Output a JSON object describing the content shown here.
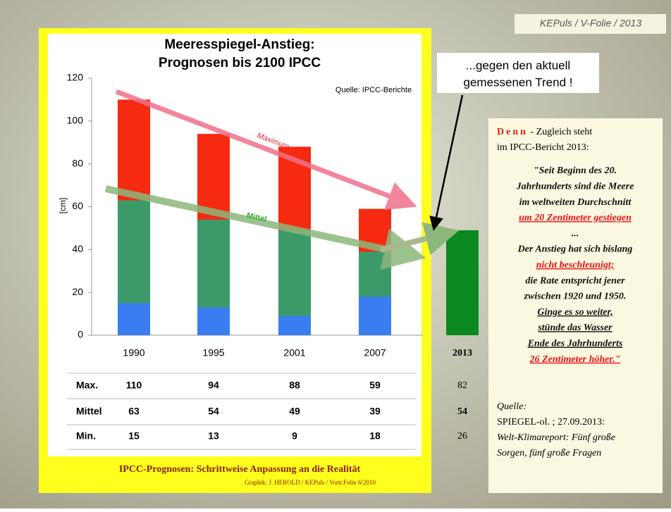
{
  "header": "KEPuls / V-Folie / 2013",
  "callout": [
    "...gegen den aktuell",
    "gemessenen Trend !"
  ],
  "chart_data": {
    "type": "bar",
    "title": [
      "Meeresspiegel-Anstieg:",
      "Prognosen bis 2100 IPCC"
    ],
    "source": "Quelle: IPCC-Berichte",
    "y_label": "[cm]",
    "annotations": [
      "Maximum",
      "Mittel"
    ],
    "categories": [
      "1990",
      "1995",
      "2001",
      "2007"
    ],
    "series": [
      {
        "name": "Max.",
        "color": "#f52a10",
        "values": [
          110,
          94,
          88,
          59
        ]
      },
      {
        "name": "Mittel",
        "color": "#3c9a6a",
        "values": [
          63,
          54,
          49,
          39
        ]
      },
      {
        "name": "Min.",
        "color": "#3a7df0",
        "values": [
          15,
          13,
          9,
          18
        ]
      }
    ],
    "column_2013": {
      "label": "2013",
      "value": 49,
      "color": "#0a8a1e",
      "values": [
        82,
        54,
        26
      ]
    },
    "ylim": [
      0,
      120
    ],
    "yticks": [
      0,
      20,
      40,
      60,
      80,
      100,
      120
    ]
  },
  "footer": {
    "title": "IPCC-Prognosen: Schrittweise Anpassung an die Realität",
    "credit": "Graphik: J. HEROLD / KEPuls / Vortr.Folie 6/2010"
  },
  "box": {
    "intro_word": "Denn",
    "intro_rest": " - Zugleich steht",
    "intro_line2": "im IPCC-Bericht 2013:",
    "quote": [
      "\"Seit Beginn des 20.",
      "Jahrhunderts sind die Meere",
      "im weltweiten Durchschnitt",
      "um 20 Zentimeter gestiegen",
      "...",
      "Der Anstieg hat sich bislang",
      "nicht beschleunigt;",
      "die Rate entspricht jener",
      "zwischen 1920 und 1950.",
      "Ginge es so weiter,",
      "stünde das Wasser",
      "Ende des Jahrhunderts",
      "26 Zentimeter höher.\""
    ],
    "source": [
      "Quelle:",
      "SPIEGEL-ol. ; 27.09.2013:",
      "Welt-Klimareport: Fünf große",
      "Sorgen, fünf große Fragen"
    ]
  }
}
